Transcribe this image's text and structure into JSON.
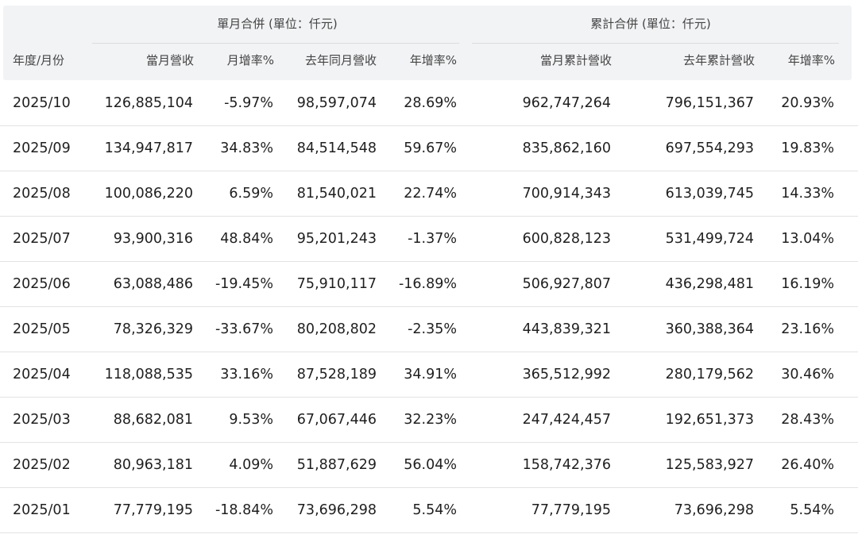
{
  "groups": {
    "monthly": "單月合併 (單位：仟元)",
    "cumulative": "累計合併 (單位：仟元)"
  },
  "columns": {
    "period": "年度/月份",
    "month_revenue": "當月營收",
    "mom": "月增率%",
    "last_year_month": "去年同月營收",
    "yoy": "年增率%",
    "cum_revenue": "當月累計營收",
    "last_year_cum": "去年累計營收",
    "cum_yoy": "年增率%"
  },
  "rows": [
    {
      "period": "2025/10",
      "month_revenue": "126,885,104",
      "mom": "-5.97%",
      "last_year_month": "98,597,074",
      "yoy": "28.69%",
      "cum_revenue": "962,747,264",
      "last_year_cum": "796,151,367",
      "cum_yoy": "20.93%"
    },
    {
      "period": "2025/09",
      "month_revenue": "134,947,817",
      "mom": "34.83%",
      "last_year_month": "84,514,548",
      "yoy": "59.67%",
      "cum_revenue": "835,862,160",
      "last_year_cum": "697,554,293",
      "cum_yoy": "19.83%"
    },
    {
      "period": "2025/08",
      "month_revenue": "100,086,220",
      "mom": "6.59%",
      "last_year_month": "81,540,021",
      "yoy": "22.74%",
      "cum_revenue": "700,914,343",
      "last_year_cum": "613,039,745",
      "cum_yoy": "14.33%"
    },
    {
      "period": "2025/07",
      "month_revenue": "93,900,316",
      "mom": "48.84%",
      "last_year_month": "95,201,243",
      "yoy": "-1.37%",
      "cum_revenue": "600,828,123",
      "last_year_cum": "531,499,724",
      "cum_yoy": "13.04%"
    },
    {
      "period": "2025/06",
      "month_revenue": "63,088,486",
      "mom": "-19.45%",
      "last_year_month": "75,910,117",
      "yoy": "-16.89%",
      "cum_revenue": "506,927,807",
      "last_year_cum": "436,298,481",
      "cum_yoy": "16.19%"
    },
    {
      "period": "2025/05",
      "month_revenue": "78,326,329",
      "mom": "-33.67%",
      "last_year_month": "80,208,802",
      "yoy": "-2.35%",
      "cum_revenue": "443,839,321",
      "last_year_cum": "360,388,364",
      "cum_yoy": "23.16%"
    },
    {
      "period": "2025/04",
      "month_revenue": "118,088,535",
      "mom": "33.16%",
      "last_year_month": "87,528,189",
      "yoy": "34.91%",
      "cum_revenue": "365,512,992",
      "last_year_cum": "280,179,562",
      "cum_yoy": "30.46%"
    },
    {
      "period": "2025/03",
      "month_revenue": "88,682,081",
      "mom": "9.53%",
      "last_year_month": "67,067,446",
      "yoy": "32.23%",
      "cum_revenue": "247,424,457",
      "last_year_cum": "192,651,373",
      "cum_yoy": "28.43%"
    },
    {
      "period": "2025/02",
      "month_revenue": "80,963,181",
      "mom": "4.09%",
      "last_year_month": "51,887,629",
      "yoy": "56.04%",
      "cum_revenue": "158,742,376",
      "last_year_cum": "125,583,927",
      "cum_yoy": "26.40%"
    },
    {
      "period": "2025/01",
      "month_revenue": "77,779,195",
      "mom": "-18.84%",
      "last_year_month": "73,696,298",
      "yoy": "5.54%",
      "cum_revenue": "77,779,195",
      "last_year_cum": "73,696,298",
      "cum_yoy": "5.54%"
    }
  ]
}
